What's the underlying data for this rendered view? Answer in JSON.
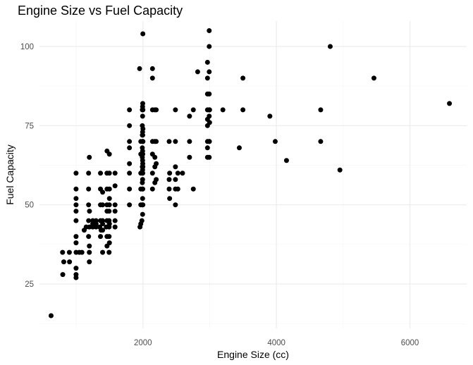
{
  "chart_data": {
    "type": "scatter",
    "title": "Engine Size vs Fuel Capacity",
    "xlabel": "Engine Size (cc)",
    "ylabel": "Fuel Capacity",
    "xlim": [
      450,
      6850
    ],
    "ylim": [
      11,
      108
    ],
    "x_ticks": [
      2000,
      4000,
      6000
    ],
    "y_ticks": [
      25,
      50,
      75,
      100
    ],
    "grid": true,
    "point_color": "#000000",
    "points": [
      [
        624,
        15
      ],
      [
        799,
        28
      ],
      [
        814,
        32
      ],
      [
        796,
        35
      ],
      [
        898,
        35
      ],
      [
        900,
        32
      ],
      [
        998,
        27
      ],
      [
        998,
        28
      ],
      [
        998,
        30
      ],
      [
        999,
        35
      ],
      [
        998,
        38
      ],
      [
        998,
        40
      ],
      [
        998,
        45
      ],
      [
        998,
        48
      ],
      [
        998,
        50
      ],
      [
        998,
        52
      ],
      [
        998,
        55
      ],
      [
        998,
        60
      ],
      [
        1047,
        35
      ],
      [
        1086,
        35
      ],
      [
        1120,
        42
      ],
      [
        1150,
        43
      ],
      [
        1186,
        40
      ],
      [
        1186,
        45
      ],
      [
        1186,
        50
      ],
      [
        1186,
        55
      ],
      [
        1186,
        60
      ],
      [
        1197,
        65
      ],
      [
        1197,
        37
      ],
      [
        1197,
        32
      ],
      [
        1197,
        35
      ],
      [
        1197,
        43
      ],
      [
        1199,
        48
      ],
      [
        1248,
        43
      ],
      [
        1248,
        44
      ],
      [
        1248,
        45
      ],
      [
        1298,
        43
      ],
      [
        1298,
        44
      ],
      [
        1298,
        45
      ],
      [
        1353,
        43
      ],
      [
        1364,
        40
      ],
      [
        1364,
        45
      ],
      [
        1364,
        50
      ],
      [
        1364,
        55
      ],
      [
        1364,
        60
      ],
      [
        1373,
        42
      ],
      [
        1396,
        35
      ],
      [
        1396,
        42
      ],
      [
        1396,
        44
      ],
      [
        1396,
        45
      ],
      [
        1396,
        50
      ],
      [
        1396,
        54
      ],
      [
        1451,
        43
      ],
      [
        1461,
        45
      ],
      [
        1461,
        50
      ],
      [
        1461,
        60
      ],
      [
        1462,
        37
      ],
      [
        1462,
        40
      ],
      [
        1462,
        48
      ],
      [
        1462,
        55
      ],
      [
        1462,
        67
      ],
      [
        1493,
        35
      ],
      [
        1493,
        40
      ],
      [
        1493,
        43
      ],
      [
        1493,
        45
      ],
      [
        1493,
        48
      ],
      [
        1497,
        50
      ],
      [
        1497,
        60
      ],
      [
        1497,
        66
      ],
      [
        1498,
        38
      ],
      [
        1498,
        44
      ],
      [
        1498,
        52
      ],
      [
        1498,
        55
      ],
      [
        1582,
        43
      ],
      [
        1582,
        45
      ],
      [
        1582,
        48
      ],
      [
        1582,
        50
      ],
      [
        1582,
        56
      ],
      [
        1582,
        60
      ],
      [
        1798,
        50
      ],
      [
        1798,
        55
      ],
      [
        1798,
        60
      ],
      [
        1798,
        63
      ],
      [
        1798,
        68
      ],
      [
        1798,
        70
      ],
      [
        1798,
        75
      ],
      [
        1798,
        80
      ],
      [
        1950,
        93
      ],
      [
        1956,
        43
      ],
      [
        1968,
        44
      ],
      [
        1968,
        50
      ],
      [
        1968,
        55
      ],
      [
        1968,
        60
      ],
      [
        1968,
        66
      ],
      [
        1968,
        70
      ],
      [
        1984,
        45
      ],
      [
        1991,
        50
      ],
      [
        1991,
        57
      ],
      [
        1991,
        60
      ],
      [
        1991,
        62
      ],
      [
        1991,
        65
      ],
      [
        1991,
        68
      ],
      [
        1991,
        72
      ],
      [
        1991,
        75
      ],
      [
        1991,
        80
      ],
      [
        1995,
        47
      ],
      [
        1995,
        52
      ],
      [
        1995,
        55
      ],
      [
        1995,
        58
      ],
      [
        1995,
        61
      ],
      [
        1995,
        64
      ],
      [
        1995,
        67
      ],
      [
        1995,
        70
      ],
      [
        1995,
        73
      ],
      [
        1995,
        78
      ],
      [
        1995,
        81
      ],
      [
        1997,
        55
      ],
      [
        1997,
        60
      ],
      [
        1997,
        63
      ],
      [
        1997,
        66
      ],
      [
        1997,
        72
      ],
      [
        1997,
        82
      ],
      [
        1999,
        50
      ],
      [
        1999,
        62
      ],
      [
        1999,
        70
      ],
      [
        1999,
        104
      ],
      [
        2000,
        70
      ],
      [
        2000,
        80
      ],
      [
        2000,
        74
      ],
      [
        2143,
        55
      ],
      [
        2143,
        60
      ],
      [
        2143,
        66
      ],
      [
        2143,
        70
      ],
      [
        2143,
        80
      ],
      [
        2143,
        90
      ],
      [
        2143,
        93
      ],
      [
        2179,
        57
      ],
      [
        2179,
        62
      ],
      [
        2179,
        65
      ],
      [
        2179,
        70
      ],
      [
        2179,
        80
      ],
      [
        2199,
        58
      ],
      [
        2199,
        63
      ],
      [
        2199,
        70
      ],
      [
        2199,
        80
      ],
      [
        2393,
        55
      ],
      [
        2393,
        58
      ],
      [
        2393,
        70
      ],
      [
        2400,
        52
      ],
      [
        2400,
        60
      ],
      [
        2487,
        50
      ],
      [
        2487,
        55
      ],
      [
        2487,
        58
      ],
      [
        2487,
        62
      ],
      [
        2487,
        70
      ],
      [
        2487,
        80
      ],
      [
        2523,
        55
      ],
      [
        2523,
        60
      ],
      [
        2593,
        60
      ],
      [
        2698,
        65
      ],
      [
        2698,
        70
      ],
      [
        2698,
        78
      ],
      [
        2755,
        55
      ],
      [
        2755,
        80
      ],
      [
        2820,
        92
      ],
      [
        2967,
        65
      ],
      [
        2967,
        68
      ],
      [
        2967,
        70
      ],
      [
        2967,
        75
      ],
      [
        2967,
        77
      ],
      [
        2967,
        80
      ],
      [
        2967,
        85
      ],
      [
        2967,
        90
      ],
      [
        2967,
        95
      ],
      [
        2993,
        65
      ],
      [
        2993,
        70
      ],
      [
        2993,
        78
      ],
      [
        2993,
        80
      ],
      [
        2993,
        85
      ],
      [
        2993,
        92
      ],
      [
        2993,
        100
      ],
      [
        2993,
        105
      ],
      [
        2996,
        70
      ],
      [
        2996,
        80
      ],
      [
        2999,
        76
      ],
      [
        2999,
        80
      ],
      [
        3198,
        80
      ],
      [
        3444,
        68
      ],
      [
        3498,
        80
      ],
      [
        3498,
        90
      ],
      [
        3902,
        78
      ],
      [
        3982,
        70
      ],
      [
        4151,
        64
      ],
      [
        4663,
        70
      ],
      [
        4663,
        80
      ],
      [
        4806,
        100
      ],
      [
        4951,
        61
      ],
      [
        5461,
        90
      ],
      [
        6592,
        82
      ]
    ]
  }
}
